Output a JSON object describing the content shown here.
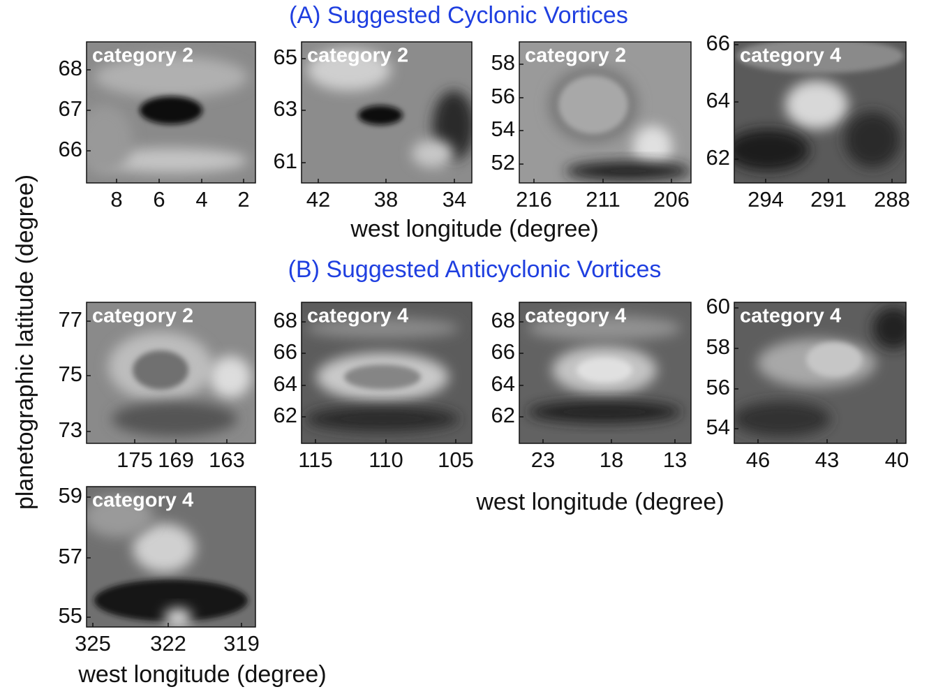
{
  "titles": {
    "a": "(A) Suggested Cyclonic Vortices",
    "b": "(B) Suggested Anticyclonic Vortices"
  },
  "y_label": "planetographic latitude (degree)",
  "x_labels": [
    "west longitude (degree)",
    "west longitude (degree)",
    "west longitude (degree)"
  ],
  "panels": [
    {
      "label": "category 2",
      "xticks": [
        8,
        6,
        4,
        2
      ],
      "yticks": [
        68,
        67,
        66
      ]
    },
    {
      "label": "category 2",
      "xticks": [
        42,
        38,
        34
      ],
      "yticks": [
        65,
        63,
        61
      ]
    },
    {
      "label": "category 2",
      "xticks": [
        216,
        211,
        206
      ],
      "yticks": [
        58,
        56,
        54,
        52
      ]
    },
    {
      "label": "category 4",
      "xticks": [
        294,
        291,
        288
      ],
      "yticks": [
        66,
        64,
        62
      ]
    },
    {
      "label": "category 2",
      "xticks": [
        175,
        169,
        163
      ],
      "yticks": [
        77,
        75,
        73
      ]
    },
    {
      "label": "category 4",
      "xticks": [
        115,
        110,
        105
      ],
      "yticks": [
        68,
        66,
        64,
        62
      ]
    },
    {
      "label": "category 4",
      "xticks": [
        23,
        18,
        13
      ],
      "yticks": [
        68,
        66,
        64,
        62
      ]
    },
    {
      "label": "category 4",
      "xticks": [
        46,
        43,
        40
      ],
      "yticks": [
        60,
        58,
        56,
        54
      ]
    },
    {
      "label": "category 4",
      "xticks": [
        325,
        322,
        319
      ],
      "yticks": [
        59,
        57,
        55
      ]
    }
  ]
}
